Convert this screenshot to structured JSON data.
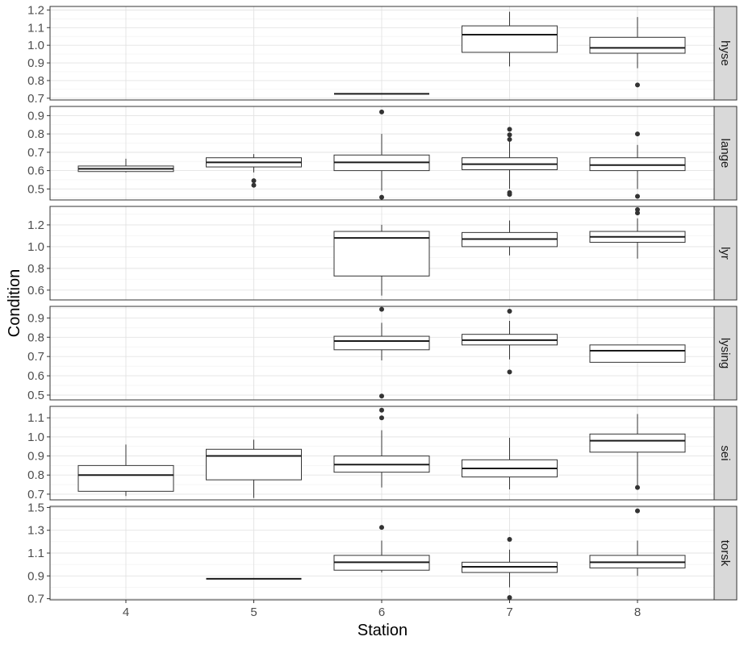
{
  "chart_data": {
    "type": "boxplot",
    "xlabel": "Station",
    "ylabel": "Condition",
    "categories": [
      "4",
      "5",
      "6",
      "7",
      "8"
    ],
    "facets": [
      {
        "name": "hyse",
        "ylim": [
          0.69,
          1.22
        ],
        "ticks": [
          "0.7",
          "0.8",
          "0.9",
          "1.0",
          "1.1",
          "1.2"
        ],
        "boxes": [
          {
            "x": "6",
            "min": 0.725,
            "q1": 0.725,
            "median": 0.725,
            "q3": 0.725,
            "max": 0.725,
            "outliers": []
          },
          {
            "x": "7",
            "min": 0.88,
            "q1": 0.96,
            "median": 1.06,
            "q3": 1.11,
            "max": 1.19,
            "outliers": []
          },
          {
            "x": "8",
            "min": 0.87,
            "q1": 0.955,
            "median": 0.985,
            "q3": 1.045,
            "max": 1.16,
            "outliers": [
              0.775
            ]
          }
        ]
      },
      {
        "name": "lange",
        "ylim": [
          0.44,
          0.95
        ],
        "ticks": [
          "0.5",
          "0.6",
          "0.7",
          "0.8",
          "0.9"
        ],
        "boxes": [
          {
            "x": "4",
            "min": 0.59,
            "q1": 0.595,
            "median": 0.61,
            "q3": 0.625,
            "max": 0.665,
            "outliers": []
          },
          {
            "x": "5",
            "min": 0.59,
            "q1": 0.62,
            "median": 0.645,
            "q3": 0.67,
            "max": 0.69,
            "outliers": [
              0.545,
              0.52
            ]
          },
          {
            "x": "6",
            "min": 0.49,
            "q1": 0.6,
            "median": 0.645,
            "q3": 0.685,
            "max": 0.8,
            "outliers": [
              0.92,
              0.455
            ]
          },
          {
            "x": "7",
            "min": 0.5,
            "q1": 0.605,
            "median": 0.635,
            "q3": 0.67,
            "max": 0.76,
            "outliers": [
              0.825,
              0.795,
              0.77,
              0.48,
              0.47
            ]
          },
          {
            "x": "8",
            "min": 0.5,
            "q1": 0.6,
            "median": 0.63,
            "q3": 0.67,
            "max": 0.74,
            "outliers": [
              0.8,
              0.46
            ]
          }
        ]
      },
      {
        "name": "lyr",
        "ylim": [
          0.51,
          1.37
        ],
        "ticks": [
          "0.6",
          "0.8",
          "1.0",
          "1.2"
        ],
        "boxes": [
          {
            "x": "6",
            "min": 0.55,
            "q1": 0.73,
            "median": 1.08,
            "q3": 1.14,
            "max": 1.2,
            "outliers": []
          },
          {
            "x": "7",
            "min": 0.92,
            "q1": 1.0,
            "median": 1.07,
            "q3": 1.13,
            "max": 1.24,
            "outliers": []
          },
          {
            "x": "8",
            "min": 0.89,
            "q1": 1.04,
            "median": 1.09,
            "q3": 1.14,
            "max": 1.26,
            "outliers": [
              1.34,
              1.31
            ]
          }
        ]
      },
      {
        "name": "lysing",
        "ylim": [
          0.475,
          0.96
        ],
        "ticks": [
          "0.5",
          "0.6",
          "0.7",
          "0.8",
          "0.9"
        ],
        "boxes": [
          {
            "x": "6",
            "min": 0.68,
            "q1": 0.735,
            "median": 0.78,
            "q3": 0.805,
            "max": 0.875,
            "outliers": [
              0.945,
              0.495
            ]
          },
          {
            "x": "7",
            "min": 0.685,
            "q1": 0.76,
            "median": 0.785,
            "q3": 0.815,
            "max": 0.885,
            "outliers": [
              0.935,
              0.62
            ]
          },
          {
            "x": "8",
            "min": 0.67,
            "q1": 0.67,
            "median": 0.73,
            "q3": 0.76,
            "max": 0.76,
            "outliers": []
          }
        ]
      },
      {
        "name": "sei",
        "ylim": [
          0.67,
          1.16
        ],
        "ticks": [
          "0.7",
          "0.8",
          "0.9",
          "1.0",
          "1.1"
        ],
        "boxes": [
          {
            "x": "4",
            "min": 0.69,
            "q1": 0.715,
            "median": 0.8,
            "q3": 0.85,
            "max": 0.96,
            "outliers": []
          },
          {
            "x": "5",
            "min": 0.68,
            "q1": 0.775,
            "median": 0.9,
            "q3": 0.935,
            "max": 0.985,
            "outliers": []
          },
          {
            "x": "6",
            "min": 0.735,
            "q1": 0.815,
            "median": 0.855,
            "q3": 0.9,
            "max": 1.035,
            "outliers": [
              1.14,
              1.1
            ]
          },
          {
            "x": "7",
            "min": 0.725,
            "q1": 0.79,
            "median": 0.835,
            "q3": 0.88,
            "max": 0.995,
            "outliers": []
          },
          {
            "x": "8",
            "min": 0.735,
            "q1": 0.92,
            "median": 0.98,
            "q3": 1.015,
            "max": 1.12,
            "outliers": [
              0.735
            ]
          }
        ]
      },
      {
        "name": "torsk",
        "ylim": [
          0.69,
          1.51
        ],
        "ticks": [
          "0.7",
          "0.9",
          "1.1",
          "1.3",
          "1.5"
        ],
        "boxes": [
          {
            "x": "5",
            "min": 0.875,
            "q1": 0.875,
            "median": 0.875,
            "q3": 0.875,
            "max": 0.875,
            "outliers": []
          },
          {
            "x": "6",
            "min": 0.93,
            "q1": 0.95,
            "median": 1.02,
            "q3": 1.08,
            "max": 1.21,
            "outliers": [
              1.325
            ]
          },
          {
            "x": "7",
            "min": 0.8,
            "q1": 0.93,
            "median": 0.98,
            "q3": 1.02,
            "max": 1.13,
            "outliers": [
              1.22,
              0.71
            ]
          },
          {
            "x": "8",
            "min": 0.9,
            "q1": 0.97,
            "median": 1.02,
            "q3": 1.08,
            "max": 1.21,
            "outliers": [
              1.47
            ]
          }
        ]
      }
    ]
  }
}
